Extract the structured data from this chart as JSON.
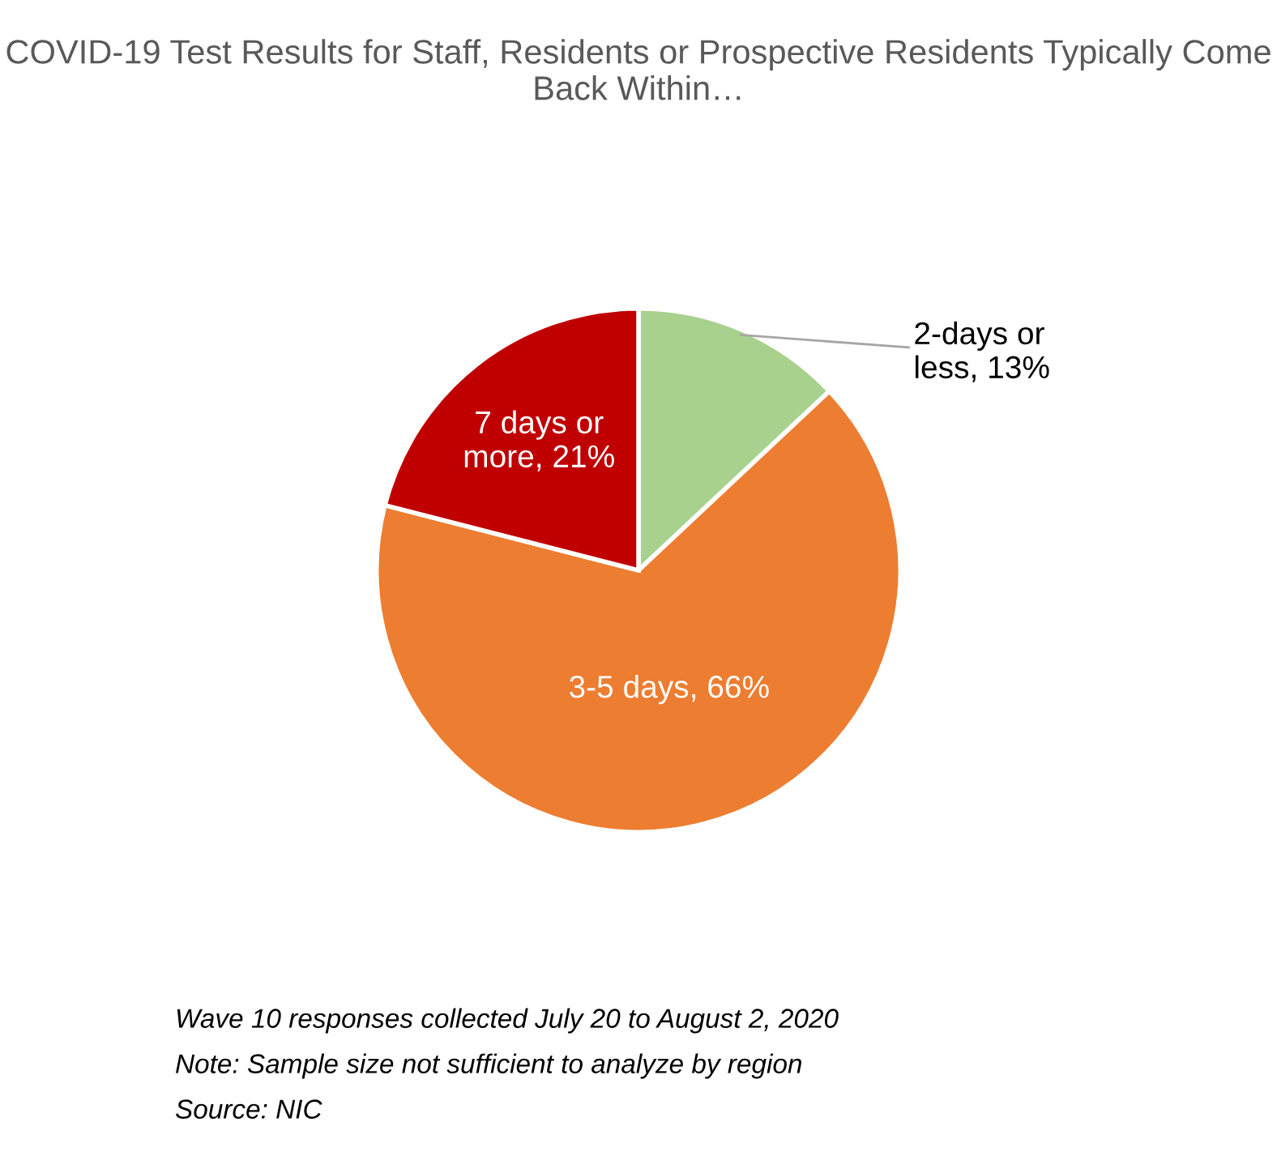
{
  "chart_data": {
    "type": "pie",
    "title": "COVID-19 Test Results for Staff, Residents or Prospective Residents Typically Come Back Within…",
    "categories": [
      "2-days or less, 13%",
      "3-5 days, 66%",
      "7 days or more, 21%"
    ],
    "values": [
      13,
      66,
      21
    ],
    "colors": [
      "#a9d18e",
      "#ed7d31",
      "#c00000"
    ],
    "annotations": [
      "Wave 10 responses collected July 20 to August 2, 2020",
      "Note: Sample size not sufficient to analyze by region",
      "Source: NIC"
    ]
  }
}
